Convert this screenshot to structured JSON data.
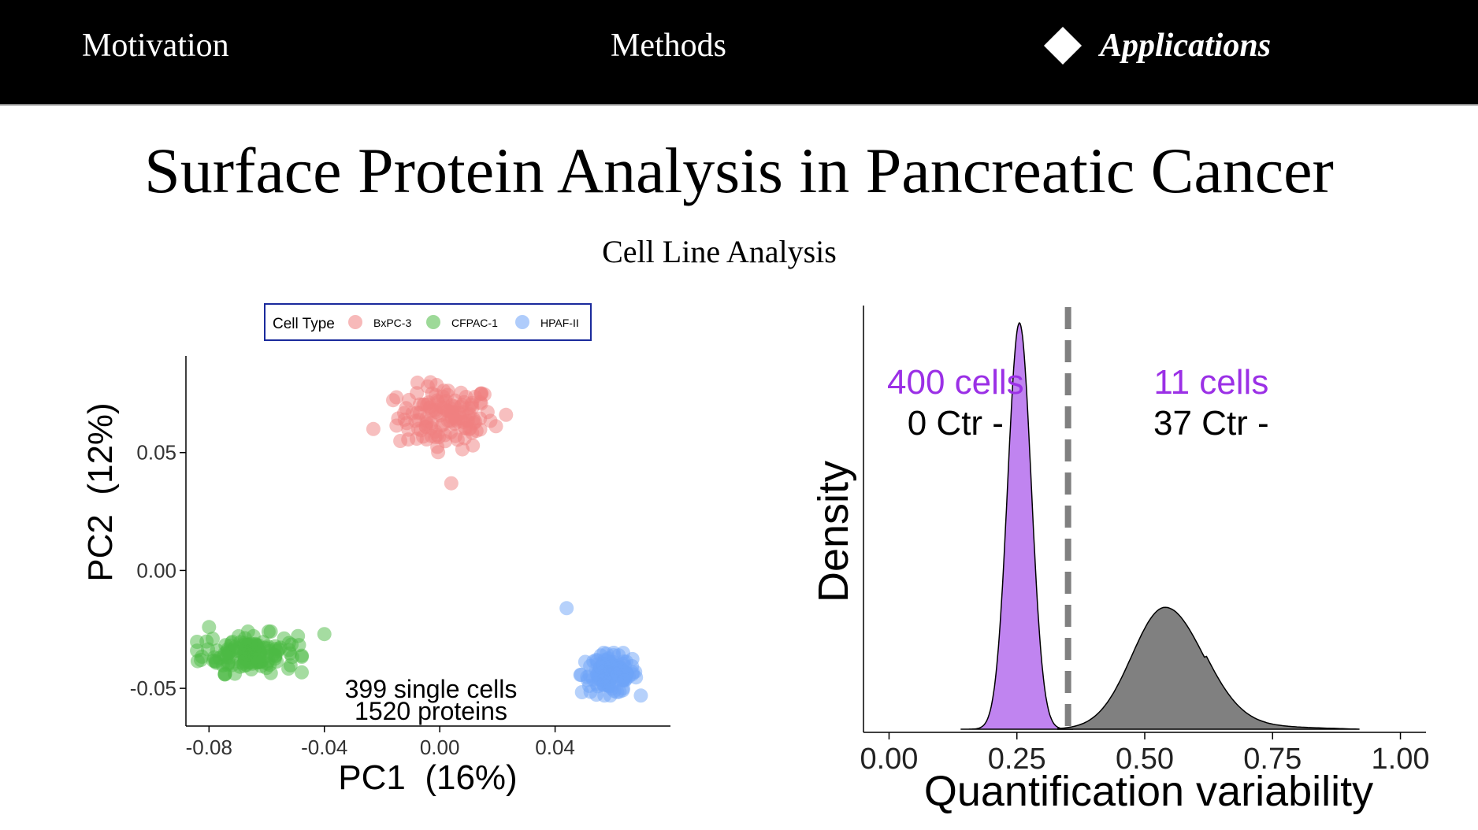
{
  "nav": {
    "items": [
      {
        "label": "Motivation",
        "active": false
      },
      {
        "label": "Methods",
        "active": false
      },
      {
        "label": "Applications",
        "active": true
      }
    ],
    "active_icon": "diamond-icon"
  },
  "title": "Surface Protein Analysis in Pancreatic Cancer",
  "subtitle": "Cell Line Analysis",
  "chart_data": [
    {
      "type": "scatter",
      "xlabel": "PC1  (16%)",
      "ylabel": "PC2  (12%)",
      "xlim": [
        -0.088,
        0.08
      ],
      "ylim": [
        -0.066,
        0.091
      ],
      "xticks": [
        -0.08,
        -0.04,
        0.0,
        0.04
      ],
      "xtick_labels": [
        "-0.08",
        "-0.04",
        "0.00",
        "0.04"
      ],
      "yticks": [
        -0.05,
        0.0,
        0.05
      ],
      "ytick_labels": [
        "-0.05",
        "0.00",
        "0.05"
      ],
      "legend": {
        "title": "Cell Type",
        "position": "top"
      },
      "annotation": [
        "399 single cells",
        "1520 proteins"
      ],
      "series": [
        {
          "name": "BxPC-3",
          "color": "#f08080",
          "center": [
            0.002,
            0.065
          ],
          "spread": [
            0.011,
            0.009
          ],
          "n": 130
        },
        {
          "name": "CFPAC-1",
          "color": "#4cb944",
          "center": [
            -0.066,
            -0.035
          ],
          "spread": [
            0.011,
            0.0055
          ],
          "n": 140
        },
        {
          "name": "HPAF-II",
          "color": "#6ea3f7",
          "center": [
            0.059,
            -0.044
          ],
          "spread": [
            0.0065,
            0.0055
          ],
          "n": 129
        }
      ],
      "outliers": [
        {
          "series": "BxPC-3",
          "x": -0.023,
          "y": 0.06
        },
        {
          "series": "BxPC-3",
          "x": 0.023,
          "y": 0.066
        },
        {
          "series": "BxPC-3",
          "x": 0.004,
          "y": 0.037
        },
        {
          "series": "CFPAC-1",
          "x": -0.08,
          "y": -0.024
        },
        {
          "series": "CFPAC-1",
          "x": -0.04,
          "y": -0.027
        },
        {
          "series": "HPAF-II",
          "x": 0.044,
          "y": -0.016
        }
      ]
    },
    {
      "type": "area",
      "xlabel": "Quantification variability",
      "ylabel": "Density",
      "xlim": [
        -0.05,
        1.05
      ],
      "xticks": [
        0.0,
        0.25,
        0.5,
        0.75,
        1.0
      ],
      "xtick_labels": [
        "0.00",
        "0.25",
        "0.50",
        "0.75",
        "1.00"
      ],
      "threshold": 0.35,
      "series": [
        {
          "name": "",
          "color": "#c084f0",
          "x_range": [
            0.14,
            0.36
          ],
          "peak_x": 0.255,
          "peak_density": 1.0,
          "sd": 0.023
        },
        {
          "name": "",
          "color": "#808080",
          "x_range": [
            0.33,
            0.92
          ],
          "peak_x": 0.54,
          "peak_density": 0.3,
          "sd": 0.065
        }
      ],
      "annotations": [
        {
          "label": "400 cells",
          "sub": "0 Ctr -",
          "x": 0.13
        },
        {
          "label": "11 cells",
          "sub": "37 Ctr -",
          "x": 0.63
        }
      ],
      "annotation_color": "#9b30e6"
    }
  ]
}
